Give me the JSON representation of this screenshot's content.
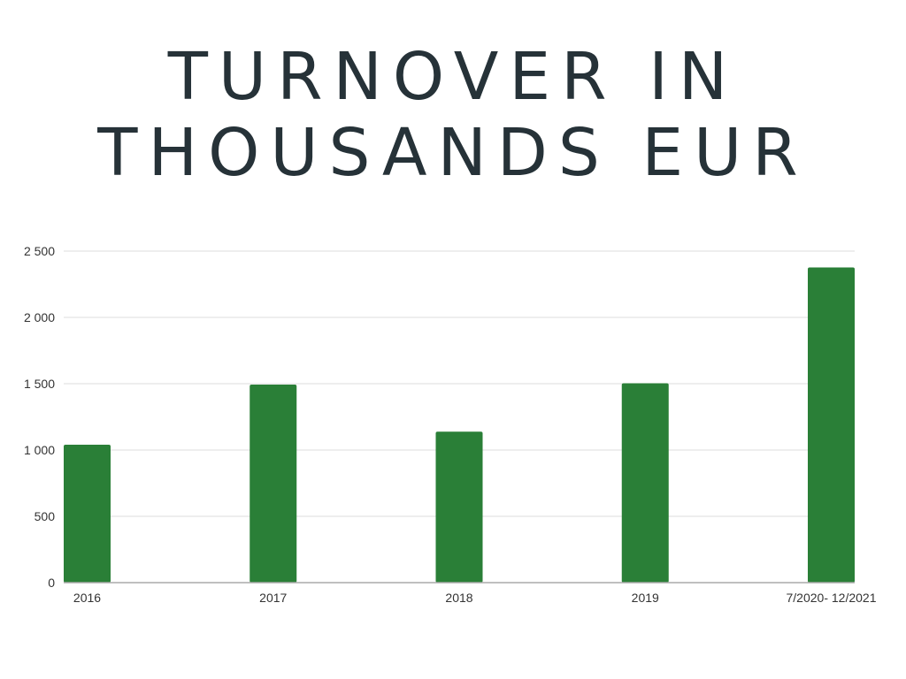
{
  "chart_data": {
    "type": "bar",
    "title_lines": [
      "TURNOVER IN",
      "THOUSANDS EUR"
    ],
    "xlabel": "",
    "ylabel": "",
    "categories": [
      "2016",
      "2017",
      "2018",
      "2019",
      "7/2020- 12/2021"
    ],
    "values": [
      1040,
      1493,
      1138,
      1503,
      2377
    ],
    "ylim": [
      0,
      2500
    ],
    "yticks": [
      0,
      500,
      1000,
      1500,
      2000,
      2500
    ],
    "ytick_labels": [
      "0",
      "500",
      "1 000",
      "1 500",
      "2 000",
      "2 500"
    ],
    "grid": true,
    "legend": "none",
    "colors": {
      "bar": "#2a7f37",
      "grid": "#dddddd",
      "axis": "#aaaaaa",
      "title": "#263238"
    }
  }
}
